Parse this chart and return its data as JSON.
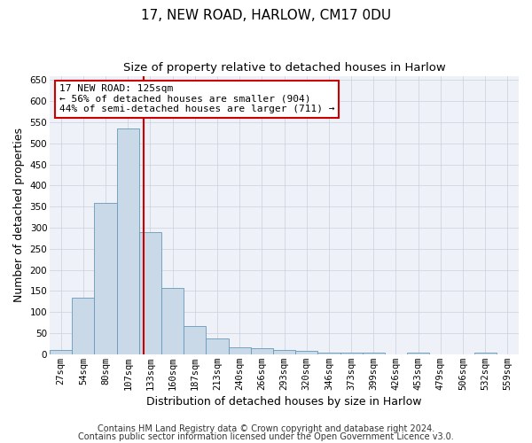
{
  "title": "17, NEW ROAD, HARLOW, CM17 0DU",
  "subtitle": "Size of property relative to detached houses in Harlow",
  "xlabel": "Distribution of detached houses by size in Harlow",
  "ylabel": "Number of detached properties",
  "bar_labels": [
    "27sqm",
    "54sqm",
    "80sqm",
    "107sqm",
    "133sqm",
    "160sqm",
    "187sqm",
    "213sqm",
    "240sqm",
    "266sqm",
    "293sqm",
    "320sqm",
    "346sqm",
    "373sqm",
    "399sqm",
    "426sqm",
    "453sqm",
    "479sqm",
    "506sqm",
    "532sqm",
    "559sqm"
  ],
  "bar_values": [
    10,
    135,
    358,
    535,
    290,
    157,
    67,
    38,
    17,
    14,
    10,
    8,
    3,
    3,
    3,
    0,
    3,
    0,
    0,
    3,
    0
  ],
  "bar_color": "#c9d9e8",
  "bar_edge_color": "#6699bb",
  "vline_x": 3.72,
  "vline_color": "#cc0000",
  "annotation_text": "17 NEW ROAD: 125sqm\n← 56% of detached houses are smaller (904)\n44% of semi-detached houses are larger (711) →",
  "annotation_box_color": "white",
  "annotation_border_color": "#cc0000",
  "ylim": [
    0,
    660
  ],
  "yticks": [
    0,
    50,
    100,
    150,
    200,
    250,
    300,
    350,
    400,
    450,
    500,
    550,
    600,
    650
  ],
  "grid_color": "#c8d0dc",
  "bg_color": "#eef2f8",
  "footer1": "Contains HM Land Registry data © Crown copyright and database right 2024.",
  "footer2": "Contains public sector information licensed under the Open Government Licence v3.0.",
  "title_fontsize": 11,
  "subtitle_fontsize": 9.5,
  "axis_label_fontsize": 9,
  "tick_fontsize": 7.5,
  "footer_fontsize": 7,
  "annot_fontsize": 8
}
